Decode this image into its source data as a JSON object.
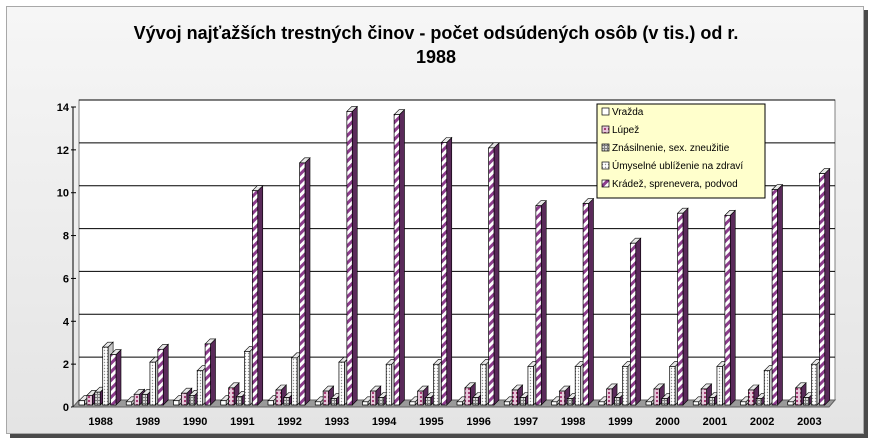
{
  "chart_data": {
    "type": "bar",
    "title_line1": "Vývoj najťažších trestných činov - počet odsúdených osôb (v tis.) od r.",
    "title_line2": "1988",
    "categories": [
      "1988",
      "1989",
      "1990",
      "1991",
      "1992",
      "1993",
      "1994",
      "1995",
      "1996",
      "1997",
      "1998",
      "1999",
      "2000",
      "2001",
      "2002",
      "2003"
    ],
    "ylim": [
      0,
      14
    ],
    "yticks": [
      "0",
      "2",
      "4",
      "6",
      "8",
      "10",
      "12",
      "14"
    ],
    "grid": true,
    "legend_position": "top-right",
    "series": [
      {
        "name": "Vražda",
        "color": "#ffffff",
        "pattern": "none",
        "values": [
          0.2,
          0.15,
          0.2,
          0.2,
          0.2,
          0.15,
          0.15,
          0.15,
          0.15,
          0.15,
          0.15,
          0.15,
          0.15,
          0.15,
          0.15,
          0.15
        ]
      },
      {
        "name": "Lúpež",
        "color": "#a0508c",
        "pattern": "dots",
        "values": [
          0.45,
          0.5,
          0.55,
          0.8,
          0.7,
          0.65,
          0.65,
          0.65,
          0.8,
          0.7,
          0.65,
          0.75,
          0.75,
          0.75,
          0.7,
          0.8
        ]
      },
      {
        "name": "Znásilnenie, sex. zneužitie",
        "color": "#b0b0b0",
        "pattern": "grid",
        "values": [
          0.6,
          0.5,
          0.45,
          0.4,
          0.35,
          0.3,
          0.35,
          0.35,
          0.35,
          0.35,
          0.3,
          0.35,
          0.3,
          0.35,
          0.3,
          0.35
        ]
      },
      {
        "name": "Úmyselné ublíženie na zdraví",
        "color": "#ffffff",
        "pattern": "dense",
        "values": [
          2.7,
          2.0,
          1.6,
          2.5,
          2.2,
          2.0,
          1.9,
          1.9,
          1.9,
          1.8,
          1.8,
          1.8,
          1.8,
          1.8,
          1.6,
          1.9
        ]
      },
      {
        "name": "Krádež, sprenevera, podvod",
        "color": "#8c3c8c",
        "pattern": "stripes",
        "values": [
          2.35,
          2.6,
          2.85,
          10.0,
          11.3,
          13.7,
          13.55,
          12.25,
          12.0,
          9.3,
          9.4,
          7.55,
          8.95,
          8.85,
          10.05,
          10.8
        ]
      }
    ]
  }
}
